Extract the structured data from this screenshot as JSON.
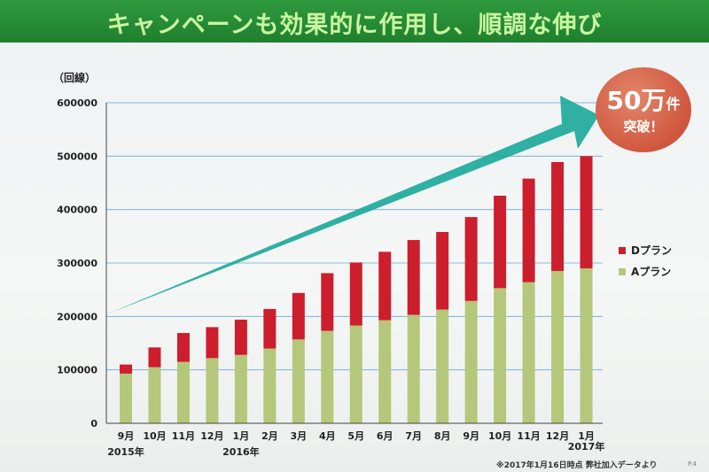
{
  "slide": {
    "title": "キャンペーンも効果的に作用し、順調な伸び",
    "badge_number": "50万",
    "badge_unit": "件",
    "badge_sub": "突破！",
    "footnote": "※2017年1月16日時点 弊社加入データより",
    "page_number": "P.4"
  },
  "colors": {
    "title_bar": "#2a8f38",
    "title_text": "#c9f5a0",
    "series_a": "#b5c77a",
    "series_d": "#cc1e2c",
    "arrow": "#1aa99a",
    "badge": "#d0573f"
  },
  "chart_data": {
    "type": "bar",
    "stacked": true,
    "unit_label": "（回線）",
    "categories": [
      "9月",
      "10月",
      "11月",
      "12月",
      "1月",
      "2月",
      "3月",
      "4月",
      "5月",
      "6月",
      "7月",
      "8月",
      "9月",
      "10月",
      "11月",
      "12月",
      "1月"
    ],
    "year_labels": [
      {
        "index": 0,
        "label": "2015年"
      },
      {
        "index": 4,
        "label": "2016年"
      },
      {
        "index": 16,
        "label": "2017年"
      }
    ],
    "series": [
      {
        "name": "Aプラン",
        "color": "#b5c77a",
        "values": [
          93000,
          105000,
          115000,
          122000,
          128000,
          140000,
          157000,
          173000,
          183000,
          193000,
          203000,
          213000,
          229000,
          253000,
          264000,
          285000,
          290000
        ]
      },
      {
        "name": "Dプラン",
        "color": "#cc1e2c",
        "values": [
          17000,
          37000,
          54000,
          58000,
          66000,
          74000,
          87000,
          108000,
          118000,
          128000,
          140000,
          145000,
          157000,
          173000,
          194000,
          204000,
          210000
        ]
      }
    ],
    "ylim": [
      0,
      600000
    ],
    "yticks": [
      "0",
      "100000",
      "200000",
      "300000",
      "400000",
      "500000",
      "600000"
    ],
    "legend_position": "right",
    "grid": true
  }
}
